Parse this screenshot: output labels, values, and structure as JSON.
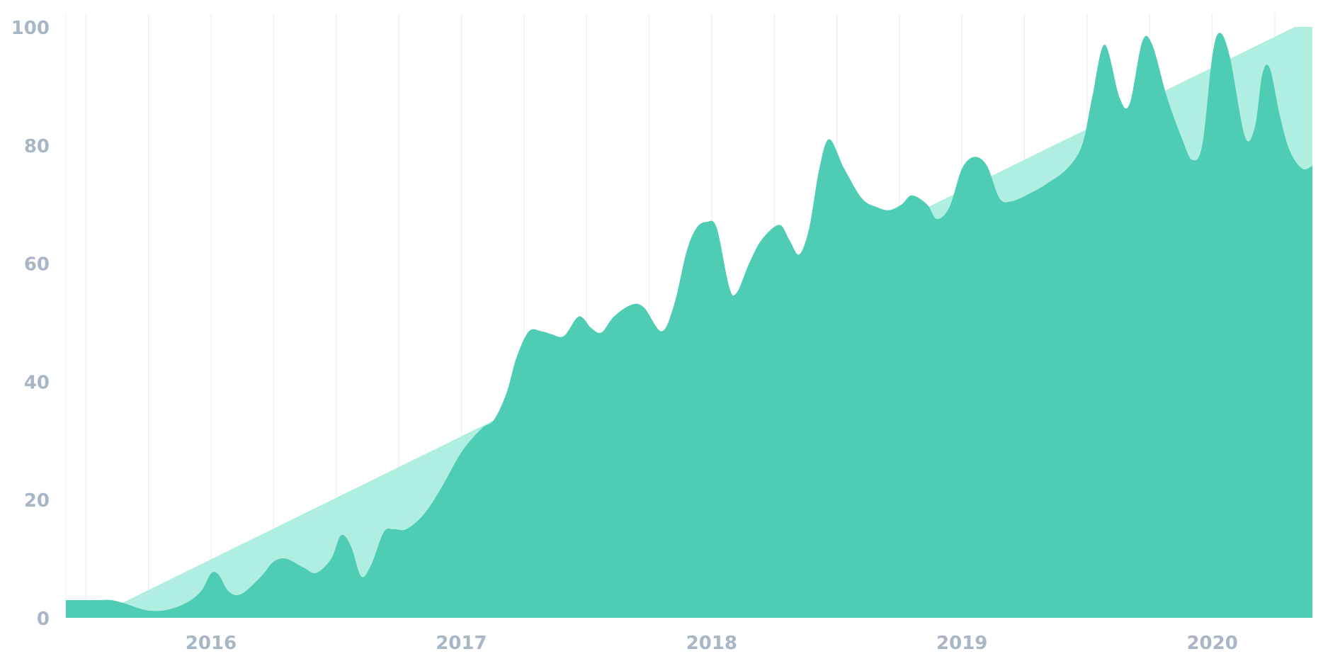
{
  "chart_data": {
    "type": "area",
    "title": "",
    "xlabel": "",
    "ylabel": "",
    "x_range": [
      2015.42,
      2020.4
    ],
    "ylim": [
      0,
      100
    ],
    "y_ticks": [
      0,
      20,
      40,
      60,
      80,
      100
    ],
    "y_tick_labels": [
      "0",
      "20",
      "40",
      "60",
      "80",
      "100"
    ],
    "x_ticks": [
      2016,
      2017,
      2018,
      2019,
      2020
    ],
    "x_tick_labels": [
      "2016",
      "2017",
      "2018",
      "2019",
      "2020"
    ],
    "grid": "vertical",
    "legend": "none",
    "colors": {
      "trend_fill": "#b0eee2",
      "main_fill": "#4fccb4",
      "gridline": "#e9ecef",
      "tick_text": "#a9b6c6"
    },
    "series": [
      {
        "role": "trend",
        "points": [
          [
            2015.42,
            2
          ],
          [
            2015.62,
            2
          ],
          [
            2020.33,
            100
          ],
          [
            2020.4,
            100
          ]
        ]
      },
      {
        "role": "main",
        "points": [
          [
            2015.42,
            3
          ],
          [
            2015.55,
            3
          ],
          [
            2015.6,
            3
          ],
          [
            2015.65,
            2.5
          ],
          [
            2015.72,
            1.5
          ],
          [
            2015.76,
            1.2
          ],
          [
            2015.82,
            1.3
          ],
          [
            2015.9,
            2.5
          ],
          [
            2015.96,
            4.5
          ],
          [
            2016.0,
            7.5
          ],
          [
            2016.03,
            7.3
          ],
          [
            2016.07,
            4.5
          ],
          [
            2016.12,
            4
          ],
          [
            2016.2,
            7
          ],
          [
            2016.25,
            9.5
          ],
          [
            2016.3,
            10
          ],
          [
            2016.37,
            8.5
          ],
          [
            2016.42,
            7.6
          ],
          [
            2016.48,
            10
          ],
          [
            2016.52,
            14
          ],
          [
            2016.56,
            12
          ],
          [
            2016.6,
            7
          ],
          [
            2016.64,
            9
          ],
          [
            2016.69,
            14.5
          ],
          [
            2016.73,
            15
          ],
          [
            2016.78,
            15
          ],
          [
            2016.85,
            17.5
          ],
          [
            2016.92,
            22
          ],
          [
            2017.0,
            28
          ],
          [
            2017.08,
            32
          ],
          [
            2017.13,
            33.5
          ],
          [
            2017.18,
            38
          ],
          [
            2017.22,
            44
          ],
          [
            2017.27,
            48.5
          ],
          [
            2017.32,
            48.5
          ],
          [
            2017.36,
            48
          ],
          [
            2017.41,
            47.7
          ],
          [
            2017.47,
            51
          ],
          [
            2017.52,
            49
          ],
          [
            2017.56,
            48.3
          ],
          [
            2017.61,
            51
          ],
          [
            2017.68,
            53
          ],
          [
            2017.73,
            52.5
          ],
          [
            2017.8,
            48.5
          ],
          [
            2017.85,
            53
          ],
          [
            2017.9,
            62
          ],
          [
            2017.94,
            66
          ],
          [
            2017.98,
            67
          ],
          [
            2018.02,
            66
          ],
          [
            2018.07,
            56
          ],
          [
            2018.1,
            55
          ],
          [
            2018.15,
            60
          ],
          [
            2018.2,
            64
          ],
          [
            2018.27,
            66.5
          ],
          [
            2018.31,
            64
          ],
          [
            2018.35,
            61.5
          ],
          [
            2018.39,
            66
          ],
          [
            2018.43,
            76
          ],
          [
            2018.47,
            81
          ],
          [
            2018.53,
            76
          ],
          [
            2018.6,
            71
          ],
          [
            2018.66,
            69.5
          ],
          [
            2018.71,
            69
          ],
          [
            2018.76,
            70
          ],
          [
            2018.8,
            71.5
          ],
          [
            2018.86,
            70
          ],
          [
            2018.9,
            67.5
          ],
          [
            2018.95,
            69.5
          ],
          [
            2019.0,
            76
          ],
          [
            2019.05,
            78
          ],
          [
            2019.1,
            76.5
          ],
          [
            2019.15,
            71
          ],
          [
            2019.2,
            70.5
          ],
          [
            2019.28,
            72
          ],
          [
            2019.34,
            73.5
          ],
          [
            2019.42,
            76
          ],
          [
            2019.48,
            80
          ],
          [
            2019.52,
            88
          ],
          [
            2019.57,
            97
          ],
          [
            2019.63,
            88
          ],
          [
            2019.67,
            87
          ],
          [
            2019.72,
            97.5
          ],
          [
            2019.76,
            97
          ],
          [
            2019.82,
            88
          ],
          [
            2019.88,
            81
          ],
          [
            2019.92,
            77.5
          ],
          [
            2019.96,
            80
          ],
          [
            2020.0,
            95
          ],
          [
            2020.03,
            99
          ],
          [
            2020.07,
            95
          ],
          [
            2020.13,
            81.5
          ],
          [
            2020.17,
            83
          ],
          [
            2020.2,
            92
          ],
          [
            2020.23,
            93
          ],
          [
            2020.27,
            85
          ],
          [
            2020.31,
            79
          ],
          [
            2020.36,
            76
          ],
          [
            2020.4,
            76.5
          ]
        ]
      }
    ]
  }
}
